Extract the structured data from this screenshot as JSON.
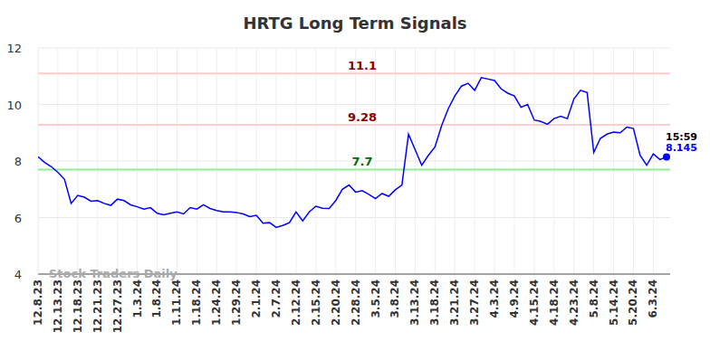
{
  "chart_data": {
    "type": "line",
    "title": "HRTG Long Term Signals",
    "watermark": "Stock Traders Daily",
    "categories": [
      "12.8.23",
      null,
      null,
      "12.13.23",
      null,
      null,
      "12.18.23",
      null,
      null,
      "12.21.23",
      null,
      null,
      "12.27.23",
      null,
      null,
      "1.3.24",
      null,
      null,
      "1.8.24",
      null,
      null,
      "1.11.24",
      null,
      null,
      "1.18.24",
      null,
      null,
      "1.24.24",
      null,
      null,
      "1.29.24",
      null,
      null,
      "2.1.24",
      null,
      null,
      "2.7.24",
      null,
      null,
      "2.12.24",
      null,
      null,
      "2.15.24",
      null,
      null,
      "2.20.24",
      null,
      null,
      "2.28.24",
      null,
      null,
      "3.5.24",
      null,
      null,
      "3.8.24",
      null,
      null,
      "3.13.24",
      null,
      null,
      "3.18.24",
      null,
      null,
      "3.21.24",
      null,
      null,
      "3.27.24",
      null,
      null,
      "4.3.24",
      null,
      null,
      "4.9.24",
      null,
      null,
      "4.15.24",
      null,
      null,
      "4.18.24",
      null,
      null,
      "4.23.24",
      null,
      null,
      "5.8.24",
      null,
      null,
      "5.14.24",
      null,
      null,
      "5.20.24",
      null,
      null,
      "6.3.24",
      null,
      null
    ],
    "values": [
      8.15,
      7.95,
      7.8,
      7.6,
      7.35,
      6.5,
      6.78,
      6.72,
      6.58,
      6.6,
      6.5,
      6.43,
      6.65,
      6.6,
      6.45,
      6.38,
      6.3,
      6.35,
      6.15,
      6.1,
      6.15,
      6.2,
      6.13,
      6.35,
      6.3,
      6.45,
      6.32,
      6.25,
      6.2,
      6.2,
      6.18,
      6.13,
      6.03,
      6.08,
      5.8,
      5.82,
      5.65,
      5.72,
      5.82,
      6.2,
      5.88,
      6.2,
      6.4,
      6.33,
      6.32,
      6.6,
      7.0,
      7.15,
      6.9,
      6.95,
      6.82,
      6.67,
      6.85,
      6.75,
      6.98,
      7.15,
      8.95,
      8.4,
      7.85,
      8.2,
      8.5,
      9.25,
      9.85,
      10.3,
      10.65,
      10.75,
      10.5,
      10.95,
      10.9,
      10.85,
      10.55,
      10.4,
      10.3,
      9.9,
      10.0,
      9.45,
      9.4,
      9.3,
      9.5,
      9.58,
      9.5,
      10.2,
      10.5,
      10.42,
      8.3,
      8.8,
      8.95,
      9.02,
      9.0,
      9.2,
      9.15,
      8.2,
      7.85,
      8.25,
      8.05,
      8.145
    ],
    "color": "#0000ff",
    "ylim": [
      4,
      12
    ],
    "yticks": [
      4,
      6,
      8,
      10,
      12
    ],
    "grid": true,
    "annotations": [
      {
        "value": 11.1,
        "text": "11.1",
        "color": "#ffcccc"
      },
      {
        "value": 9.28,
        "text": "9.28",
        "color": "#ffcccc"
      },
      {
        "value": 7.7,
        "text": "7.7",
        "color": "#90ee90"
      }
    ],
    "last_point": {
      "time": "15:59",
      "text": "8.145"
    }
  }
}
